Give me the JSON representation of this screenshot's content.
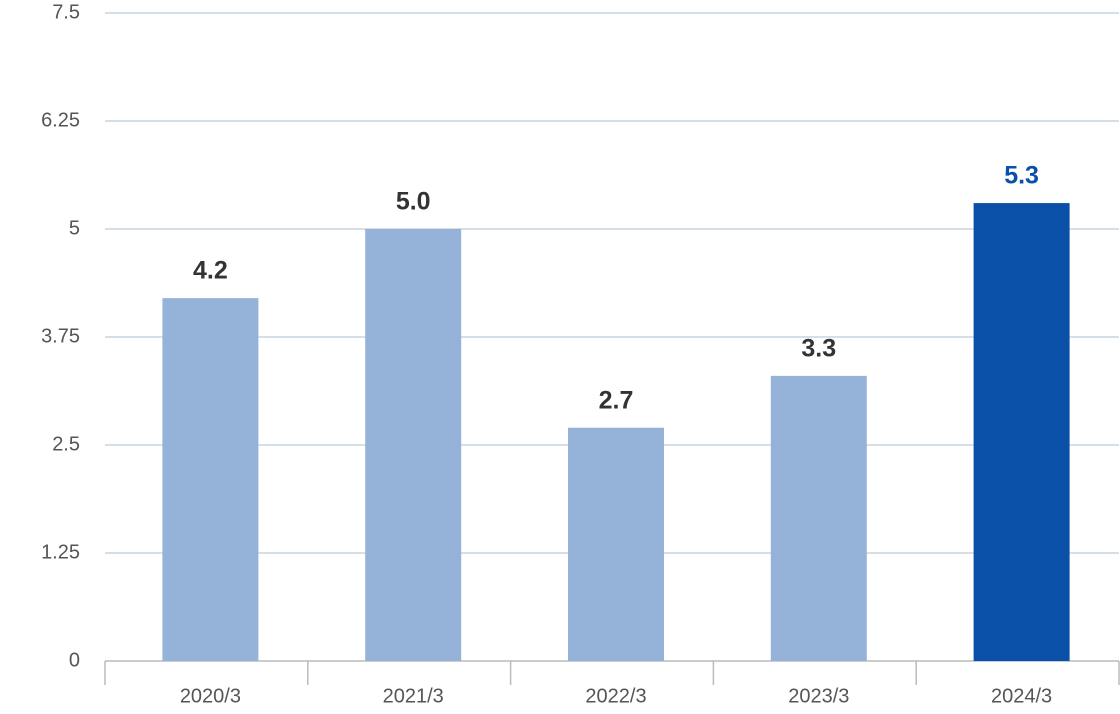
{
  "chart_data": {
    "type": "bar",
    "categories": [
      "2020/3",
      "2021/3",
      "2022/3",
      "2023/3",
      "2024/3"
    ],
    "values": [
      4.2,
      5.0,
      2.7,
      3.3,
      5.3
    ],
    "value_labels": [
      "4.2",
      "5.0",
      "2.7",
      "3.3",
      "5.3"
    ],
    "colors": [
      "#95b3d9",
      "#95b3d9",
      "#95b3d9",
      "#95b3d9",
      "#0b50a8"
    ],
    "label_colors": [
      "#333333",
      "#333333",
      "#333333",
      "#333333",
      "#0b50a8"
    ],
    "ylim": [
      0,
      7.5
    ],
    "yticks": [
      0,
      1.25,
      2.5,
      3.75,
      5,
      6.25,
      7.5
    ],
    "grid": true
  }
}
